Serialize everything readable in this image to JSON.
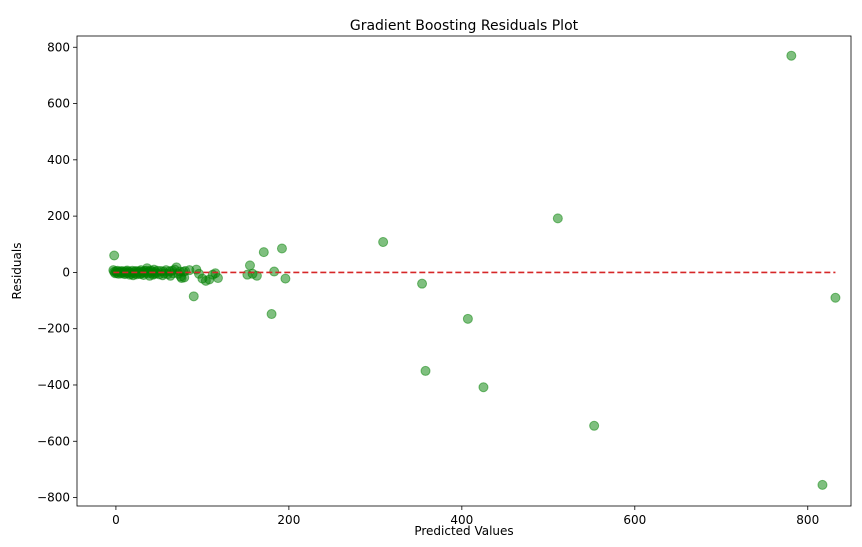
{
  "chart_data": {
    "type": "scatter",
    "title": "Gradient Boosting Residuals Plot",
    "xlabel": "Predicted Values",
    "ylabel": "Residuals",
    "xlim": [
      -45,
      850
    ],
    "ylim": [
      -830,
      840
    ],
    "xticks": [
      0,
      200,
      400,
      600,
      800
    ],
    "xtick_labels": [
      "0",
      "200",
      "400",
      "600",
      "800"
    ],
    "yticks": [
      -800,
      -600,
      -400,
      -200,
      0,
      200,
      400,
      600,
      800
    ],
    "ytick_labels": [
      "−800",
      "−600",
      "−400",
      "−200",
      "0",
      "200",
      "400",
      "600",
      "800"
    ],
    "grid": false,
    "legend": "none",
    "point_color": "#008000",
    "point_opacity": 0.5,
    "reference_line": {
      "y": 0,
      "x_range": [
        -3,
        832
      ],
      "color": "#d62728",
      "style": "dashed"
    },
    "points": [
      {
        "x": -2,
        "y": 60
      },
      {
        "x": -3,
        "y": 8
      },
      {
        "x": -2,
        "y": 2
      },
      {
        "x": -1,
        "y": -3
      },
      {
        "x": 0,
        "y": 4
      },
      {
        "x": 1,
        "y": -2
      },
      {
        "x": 2,
        "y": 6
      },
      {
        "x": 3,
        "y": -5
      },
      {
        "x": 4,
        "y": 1
      },
      {
        "x": 5,
        "y": 3
      },
      {
        "x": 6,
        "y": -4
      },
      {
        "x": 7,
        "y": 5
      },
      {
        "x": 8,
        "y": -1
      },
      {
        "x": 9,
        "y": 2
      },
      {
        "x": 10,
        "y": -6
      },
      {
        "x": 11,
        "y": 4
      },
      {
        "x": 12,
        "y": -3
      },
      {
        "x": 13,
        "y": 7
      },
      {
        "x": 14,
        "y": -2
      },
      {
        "x": 15,
        "y": 3
      },
      {
        "x": 16,
        "y": -8
      },
      {
        "x": 17,
        "y": 1
      },
      {
        "x": 18,
        "y": -5
      },
      {
        "x": 19,
        "y": 6
      },
      {
        "x": 20,
        "y": -10
      },
      {
        "x": 21,
        "y": 2
      },
      {
        "x": 22,
        "y": -4
      },
      {
        "x": 23,
        "y": 5
      },
      {
        "x": 24,
        "y": -7
      },
      {
        "x": 25,
        "y": 3
      },
      {
        "x": 26,
        "y": -2
      },
      {
        "x": 27,
        "y": 4
      },
      {
        "x": 28,
        "y": -6
      },
      {
        "x": 29,
        "y": 8
      },
      {
        "x": 30,
        "y": -3
      },
      {
        "x": 31,
        "y": 2
      },
      {
        "x": 32,
        "y": -9
      },
      {
        "x": 33,
        "y": 5
      },
      {
        "x": 34,
        "y": -1
      },
      {
        "x": 35,
        "y": 6
      },
      {
        "x": 36,
        "y": 15
      },
      {
        "x": 37,
        "y": -4
      },
      {
        "x": 38,
        "y": 3
      },
      {
        "x": 39,
        "y": -12
      },
      {
        "x": 40,
        "y": 7
      },
      {
        "x": 41,
        "y": -2
      },
      {
        "x": 42,
        "y": 4
      },
      {
        "x": 43,
        "y": -8
      },
      {
        "x": 44,
        "y": 10
      },
      {
        "x": 45,
        "y": -5
      },
      {
        "x": 46,
        "y": 2
      },
      {
        "x": 47,
        "y": -3
      },
      {
        "x": 48,
        "y": 6
      },
      {
        "x": 50,
        "y": -7
      },
      {
        "x": 52,
        "y": 5
      },
      {
        "x": 54,
        "y": -10
      },
      {
        "x": 55,
        "y": 3
      },
      {
        "x": 56,
        "y": -4
      },
      {
        "x": 58,
        "y": 8
      },
      {
        "x": 60,
        "y": -6
      },
      {
        "x": 62,
        "y": 4
      },
      {
        "x": 63,
        "y": -12
      },
      {
        "x": 65,
        "y": 6
      },
      {
        "x": 66,
        "y": -3
      },
      {
        "x": 68,
        "y": 10
      },
      {
        "x": 70,
        "y": 18
      },
      {
        "x": 72,
        "y": -5
      },
      {
        "x": 74,
        "y": 3
      },
      {
        "x": 75,
        "y": -15
      },
      {
        "x": 76,
        "y": -20
      },
      {
        "x": 78,
        "y": 2
      },
      {
        "x": 79,
        "y": -18
      },
      {
        "x": 80,
        "y": 5
      },
      {
        "x": 85,
        "y": 8
      },
      {
        "x": 90,
        "y": -85
      },
      {
        "x": 93,
        "y": 10
      },
      {
        "x": 96,
        "y": -5
      },
      {
        "x": 100,
        "y": -22
      },
      {
        "x": 104,
        "y": -30
      },
      {
        "x": 108,
        "y": -25
      },
      {
        "x": 112,
        "y": -8
      },
      {
        "x": 115,
        "y": -3
      },
      {
        "x": 118,
        "y": -20
      },
      {
        "x": 152,
        "y": -8
      },
      {
        "x": 155,
        "y": 25
      },
      {
        "x": 158,
        "y": -5
      },
      {
        "x": 163,
        "y": -12
      },
      {
        "x": 171,
        "y": 72
      },
      {
        "x": 180,
        "y": -148
      },
      {
        "x": 183,
        "y": 3
      },
      {
        "x": 192,
        "y": 85
      },
      {
        "x": 196,
        "y": -22
      },
      {
        "x": 309,
        "y": 108
      },
      {
        "x": 354,
        "y": -40
      },
      {
        "x": 358,
        "y": -350
      },
      {
        "x": 407,
        "y": -165
      },
      {
        "x": 425,
        "y": -408
      },
      {
        "x": 511,
        "y": 192
      },
      {
        "x": 553,
        "y": -545
      },
      {
        "x": 781,
        "y": 770
      },
      {
        "x": 817,
        "y": -755
      },
      {
        "x": 832,
        "y": -90
      }
    ]
  }
}
